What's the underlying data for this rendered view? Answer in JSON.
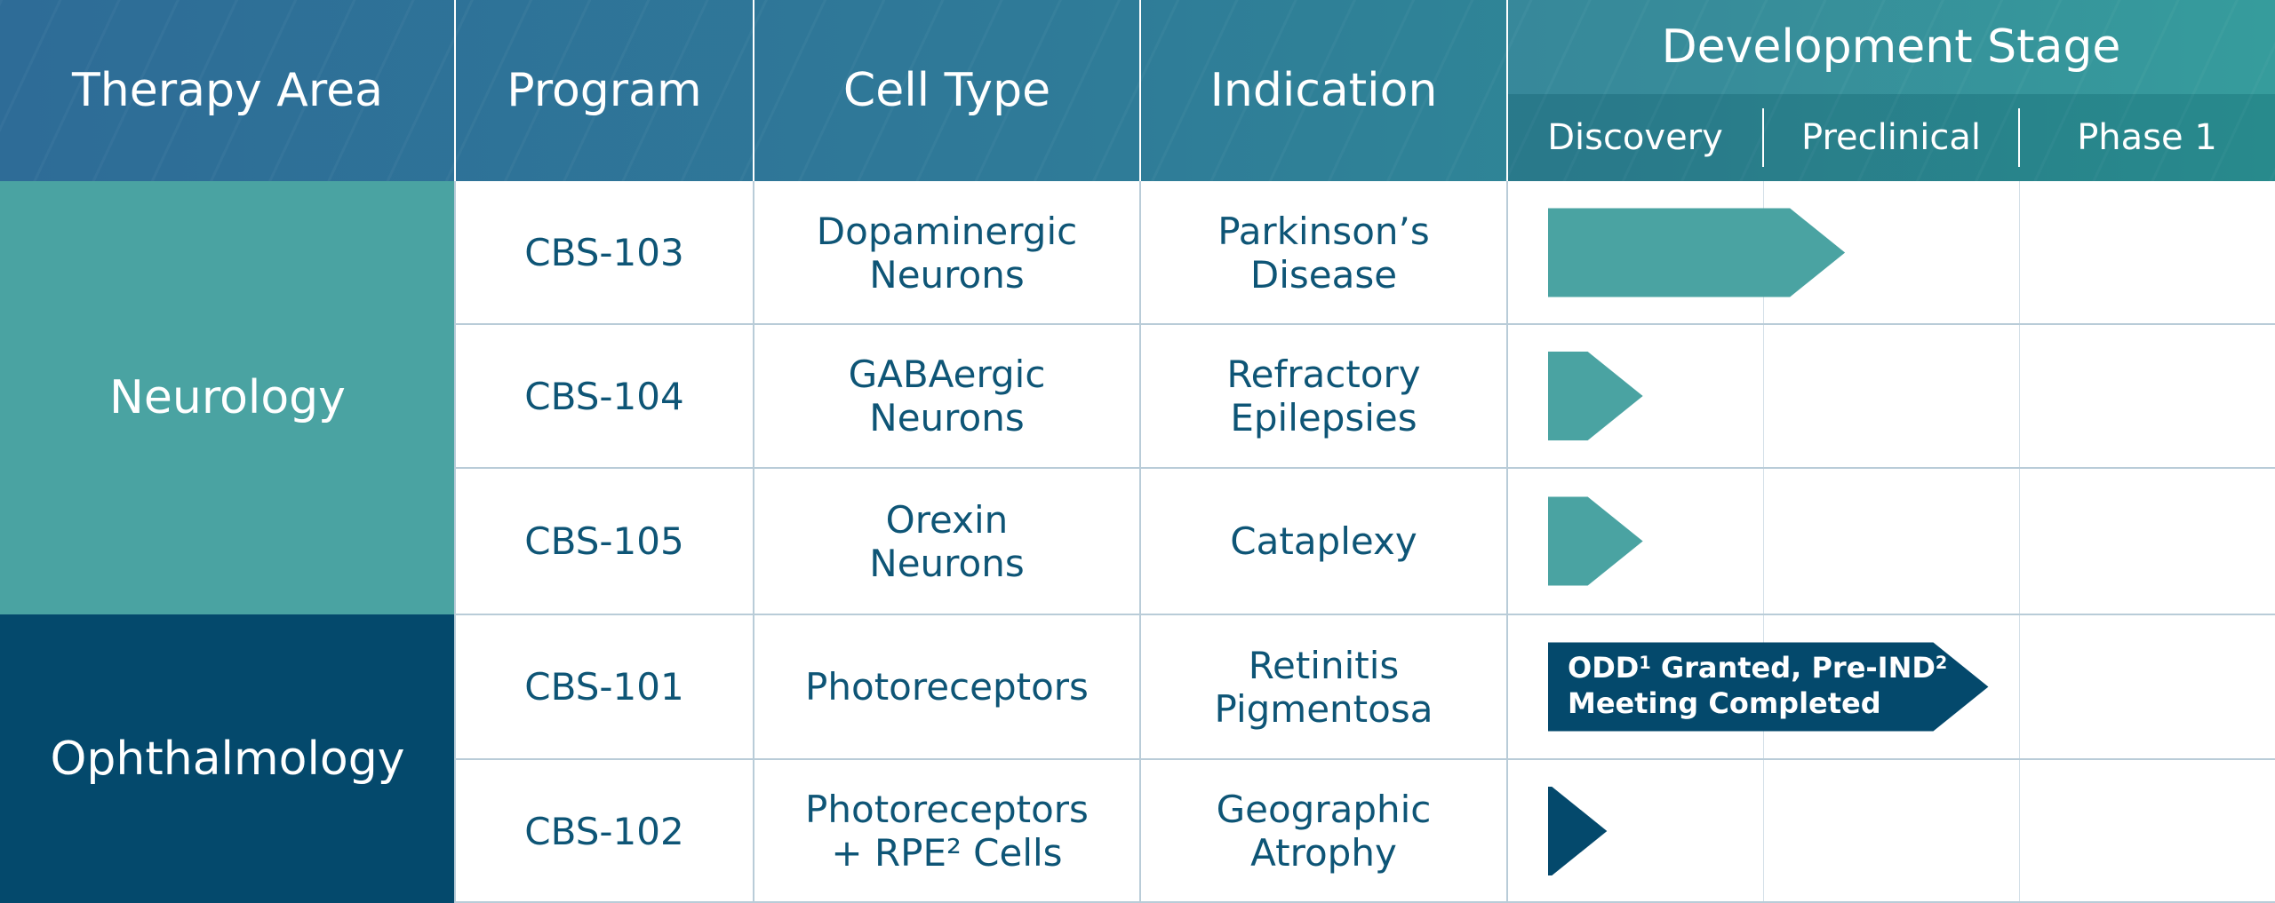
{
  "chart_data": {
    "type": "table",
    "columns": {
      "therapy_area": "Therapy Area",
      "program": "Program",
      "cell_type": "Cell Type",
      "indication": "Indication",
      "development_stage": "Development Stage"
    },
    "stages": [
      "Discovery",
      "Preclinical",
      "Phase 1"
    ],
    "areas": [
      {
        "name": "Neurology",
        "color": "#4aa3a2"
      },
      {
        "name": "Ophthalmology",
        "color": "#04496c"
      }
    ],
    "rows": [
      {
        "program": "CBS-103",
        "cell_type": "Dopaminergic\nNeurons",
        "indication": "Parkinson’s\nDisease",
        "area": "Neurology",
        "progress_stages": 1.32,
        "color": "#4aa3a2"
      },
      {
        "program": "CBS-104",
        "cell_type": "GABAergic\nNeurons",
        "indication": "Refractory\nEpilepsies",
        "area": "Neurology",
        "progress_stages": 0.53,
        "color": "#4aa3a2"
      },
      {
        "program": "CBS-105",
        "cell_type": "Orexin\nNeurons",
        "indication": "Cataplexy",
        "area": "Neurology",
        "progress_stages": 0.53,
        "color": "#4aa3a2"
      },
      {
        "program": "CBS-101",
        "cell_type": "Photoreceptors",
        "indication": "Retinitis\nPigmentosa",
        "area": "Ophthalmology",
        "progress_stages": 1.88,
        "color": "#04496c",
        "note": {
          "parts": [
            "ODD",
            "1",
            " Granted, Pre-IND",
            "2",
            "\nMeeting Completed"
          ]
        }
      },
      {
        "program": "CBS-102",
        "cell_type": "Photoreceptors\n+ RPE² Cells",
        "indication": "Geographic\nAtrophy",
        "area": "Ophthalmology",
        "progress_stages": 0.39,
        "color": "#04496c"
      }
    ]
  }
}
